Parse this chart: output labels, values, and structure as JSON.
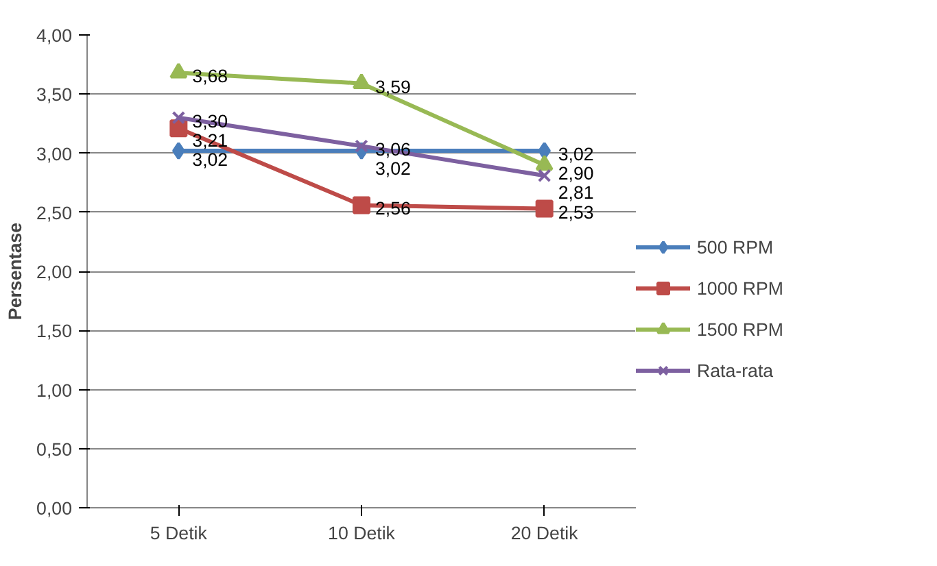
{
  "chart_data": {
    "type": "line",
    "ylabel": "Persentase",
    "categories": [
      "5 Detik",
      "10 Detik",
      "20 Detik"
    ],
    "series": [
      {
        "name": "500 RPM",
        "color": "#4a7ebb",
        "marker": "diamond",
        "values": [
          3.02,
          3.02,
          3.02
        ],
        "value_labels": [
          "3,02",
          "3,02",
          "3,02"
        ]
      },
      {
        "name": "1000 RPM",
        "color": "#be4b48",
        "marker": "square",
        "values": [
          3.21,
          2.56,
          2.53
        ],
        "value_labels": [
          "3,21",
          "2,56",
          "2,53"
        ]
      },
      {
        "name": "1500 RPM",
        "color": "#98b954",
        "marker": "triangle",
        "values": [
          3.68,
          3.59,
          2.9
        ],
        "value_labels": [
          "3,68",
          "3,59",
          "2,90"
        ]
      },
      {
        "name": "Rata-rata",
        "color": "#7d60a0",
        "marker": "cross",
        "values": [
          3.3,
          3.06,
          2.81
        ],
        "value_labels": [
          "3,30",
          "3,06",
          "2,81"
        ]
      }
    ],
    "ylim": [
      0,
      4
    ],
    "yticks": [
      {
        "value": 0,
        "label": "0,00"
      },
      {
        "value": 0.5,
        "label": "0,50"
      },
      {
        "value": 1,
        "label": "1,00"
      },
      {
        "value": 1.5,
        "label": "1,50"
      },
      {
        "value": 2,
        "label": "2,00"
      },
      {
        "value": 2.5,
        "label": "2,50"
      },
      {
        "value": 3,
        "label": "3,00"
      },
      {
        "value": 3.5,
        "label": "3,50"
      },
      {
        "value": 4,
        "label": "4,00"
      }
    ],
    "grid": "y",
    "legend": "right"
  }
}
